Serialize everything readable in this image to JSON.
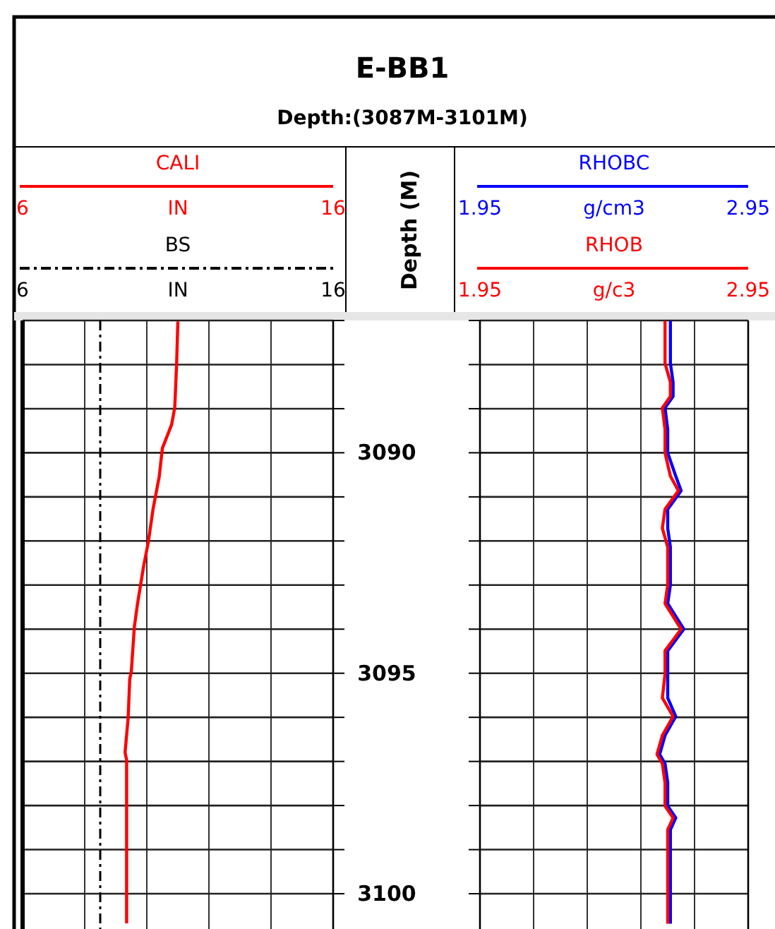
{
  "chart_data": [
    {
      "type": "line",
      "title": "E-BB1",
      "subtitle": "Depth:(3087M-3101M)",
      "ylabel": "Depth (M)",
      "xlabel": "IN",
      "x2label": "IN",
      "xlim": [
        6,
        16
      ],
      "xticks": [
        6,
        {
          "value": 8,
          "label": null
        },
        {
          "value": 10,
          "label": null
        },
        {
          "value": 12,
          "label": null
        },
        {
          "value": 14,
          "label": null
        },
        16
      ],
      "x2lim": [
        6,
        16
      ],
      "x2ticks": [
        6,
        16
      ],
      "ylim": [
        3100.8,
        3087
      ],
      "yticks": [
        {
          "value": 3087,
          "label": null
        },
        {
          "value": 3088,
          "label": null
        },
        {
          "value": 3089,
          "label": null
        },
        3090,
        {
          "value": 3091,
          "label": null
        },
        {
          "value": 3092,
          "label": null
        },
        {
          "value": 3093,
          "label": null
        },
        {
          "value": 3094,
          "label": null
        },
        3095,
        {
          "value": 3096,
          "label": null
        },
        {
          "value": 3097,
          "label": null
        },
        {
          "value": 3098,
          "label": null
        },
        {
          "value": 3099,
          "label": null
        },
        3100
      ],
      "grid": true,
      "series": [
        {
          "name": "CALI",
          "color": "#ff0000",
          "line_style": "solid",
          "x": [
            11.0,
            10.96,
            10.9,
            10.8,
            10.5,
            10.4,
            10.2,
            10.05,
            9.9,
            9.7,
            9.6,
            9.5,
            9.45,
            9.4,
            9.3,
            9.35,
            9.35
          ],
          "values": [
            3087.02,
            3087.98,
            3088.97,
            3089.36,
            3089.9,
            3090.54,
            3091.28,
            3092.02,
            3092.56,
            3093.43,
            3093.94,
            3094.97,
            3095.13,
            3096.0,
            3096.8,
            3096.96,
            3100.67
          ]
        },
        {
          "name": "BS",
          "color": "#000000",
          "line_style": "dashed",
          "axis": "x2",
          "x": [
            8.5,
            8.5
          ],
          "values": [
            3087,
            3100.8
          ]
        }
      ]
    },
    {
      "type": "line",
      "xlabel": "g/cm3",
      "x2label": "g/c3",
      "xlim": [
        1.95,
        2.95
      ],
      "xticks": [
        1.95,
        {
          "value": 2.15,
          "label": null
        },
        {
          "value": 2.35,
          "label": null
        },
        {
          "value": 2.55,
          "label": null
        },
        {
          "value": 2.75,
          "label": null
        },
        2.95
      ],
      "x2lim": [
        1.95,
        2.95
      ],
      "x2ticks": [
        1.95,
        2.95
      ],
      "ylim": [
        3100.8,
        3087
      ],
      "yticks": [
        {
          "value": 3087,
          "label": null
        },
        {
          "value": 3088,
          "label": null
        },
        {
          "value": 3089,
          "label": null
        },
        {
          "value": 3090,
          "label": null
        },
        {
          "value": 3091,
          "label": null
        },
        {
          "value": 3092,
          "label": null
        },
        {
          "value": 3093,
          "label": null
        },
        {
          "value": 3094,
          "label": null
        },
        {
          "value": 3095,
          "label": null
        },
        {
          "value": 3096,
          "label": null
        },
        {
          "value": 3097,
          "label": null
        },
        {
          "value": 3098,
          "label": null
        },
        {
          "value": 3099,
          "label": null
        },
        {
          "value": 3100,
          "label": null
        }
      ],
      "grid": true,
      "tick_labels": "x",
      "series": [
        {
          "name": "RHOBC",
          "color": "#0000ff",
          "line_style": "solid",
          "x": [
            2.66,
            2.66,
            2.67,
            2.67,
            2.64,
            2.65,
            2.65,
            2.68,
            2.7,
            2.65,
            2.65,
            2.66,
            2.66,
            2.65,
            2.71,
            2.65,
            2.65,
            2.65,
            2.68,
            2.64,
            2.62,
            2.64,
            2.65,
            2.65,
            2.68,
            2.66,
            2.66,
            2.66
          ],
          "values": [
            3087.01,
            3087.97,
            3088.4,
            3088.72,
            3088.98,
            3089.47,
            3090.0,
            3090.53,
            3090.86,
            3091.28,
            3091.71,
            3092.14,
            3093.0,
            3093.42,
            3094.0,
            3094.49,
            3095.02,
            3095.56,
            3095.98,
            3096.41,
            3096.84,
            3097.05,
            3097.48,
            3098.01,
            3098.28,
            3098.55,
            3099.62,
            3100.68
          ]
        },
        {
          "name": "RHOB",
          "color": "#ff0000",
          "line_style": "solid",
          "axis": "x2",
          "x": [
            2.64,
            2.64,
            2.66,
            2.66,
            2.63,
            2.64,
            2.64,
            2.66,
            2.69,
            2.64,
            2.63,
            2.65,
            2.65,
            2.64,
            2.7,
            2.64,
            2.64,
            2.63,
            2.67,
            2.63,
            2.61,
            2.63,
            2.64,
            2.64,
            2.67,
            2.65,
            2.65,
            2.65
          ],
          "values": [
            3087.01,
            3087.97,
            3088.4,
            3088.72,
            3088.98,
            3089.47,
            3090.0,
            3090.53,
            3090.86,
            3091.28,
            3091.71,
            3092.14,
            3093.0,
            3093.42,
            3094.0,
            3094.49,
            3095.02,
            3095.56,
            3095.98,
            3096.41,
            3096.84,
            3097.05,
            3097.48,
            3098.01,
            3098.28,
            3098.55,
            3099.62,
            3100.68
          ]
        }
      ]
    }
  ]
}
